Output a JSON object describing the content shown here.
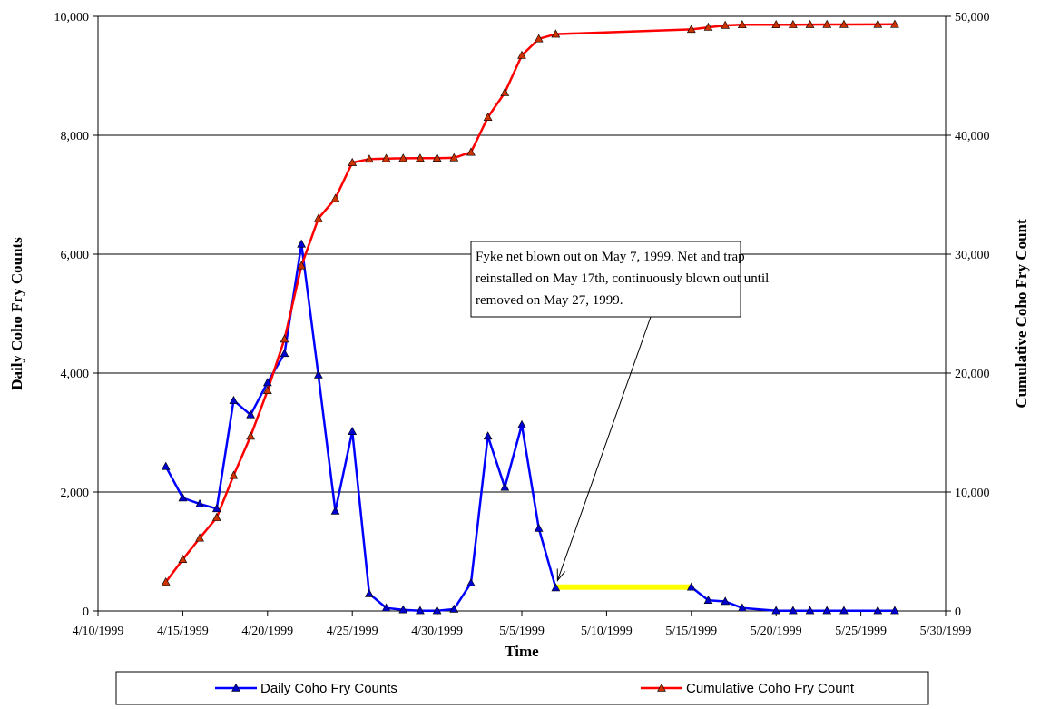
{
  "chart_data": {
    "type": "line",
    "xlabel": "Time",
    "ylabel_left": "Daily Coho Fry Counts",
    "ylabel_right": "Cumulative Coho Fry Count",
    "xlim": [
      "1999-04-10",
      "1999-05-30"
    ],
    "x_ticks": [
      "4/10/1999",
      "4/15/1999",
      "4/20/1999",
      "4/25/1999",
      "4/30/1999",
      "5/5/1999",
      "5/10/1999",
      "5/15/1999",
      "5/20/1999",
      "5/25/1999",
      "5/30/1999"
    ],
    "ylim_left": [
      0,
      10000
    ],
    "ylim_right": [
      0,
      50000
    ],
    "y_ticks_left": [
      "0",
      "2,000",
      "4,000",
      "6,000",
      "8,000",
      "10,000"
    ],
    "y_ticks_right": [
      "0",
      "10,000",
      "20,000",
      "30,000",
      "40,000",
      "50,000"
    ],
    "grid": "horizontal",
    "legend_position": "bottom",
    "series": [
      {
        "name": "Daily Coho Fry Counts",
        "axis": "left",
        "color": "#0000ff",
        "marker": "triangle",
        "segments": [
          [
            {
              "x": "1999-04-14",
              "y": 2430
            },
            {
              "x": "1999-04-15",
              "y": 1900
            },
            {
              "x": "1999-04-16",
              "y": 1800
            },
            {
              "x": "1999-04-17",
              "y": 1720
            },
            {
              "x": "1999-04-18",
              "y": 3540
            },
            {
              "x": "1999-04-19",
              "y": 3300
            },
            {
              "x": "1999-04-20",
              "y": 3840
            },
            {
              "x": "1999-04-21",
              "y": 4330
            },
            {
              "x": "1999-04-22",
              "y": 6170
            },
            {
              "x": "1999-04-23",
              "y": 3970
            },
            {
              "x": "1999-04-24",
              "y": 1680
            },
            {
              "x": "1999-04-25",
              "y": 3020
            },
            {
              "x": "1999-04-26",
              "y": 290
            },
            {
              "x": "1999-04-27",
              "y": 50
            },
            {
              "x": "1999-04-28",
              "y": 20
            },
            {
              "x": "1999-04-29",
              "y": 5
            },
            {
              "x": "1999-04-30",
              "y": 5
            },
            {
              "x": "1999-05-01",
              "y": 30
            },
            {
              "x": "1999-05-02",
              "y": 470
            },
            {
              "x": "1999-05-03",
              "y": 2940
            },
            {
              "x": "1999-05-04",
              "y": 2080
            },
            {
              "x": "1999-05-05",
              "y": 3130
            },
            {
              "x": "1999-05-06",
              "y": 1390
            },
            {
              "x": "1999-05-07",
              "y": 390
            }
          ],
          [
            {
              "x": "1999-05-15",
              "y": 400
            },
            {
              "x": "1999-05-16",
              "y": 180
            },
            {
              "x": "1999-05-17",
              "y": 160
            },
            {
              "x": "1999-05-18",
              "y": 50
            },
            {
              "x": "1999-05-20",
              "y": 5
            },
            {
              "x": "1999-05-21",
              "y": 5
            },
            {
              "x": "1999-05-22",
              "y": 5
            },
            {
              "x": "1999-05-23",
              "y": 5
            },
            {
              "x": "1999-05-24",
              "y": 5
            },
            {
              "x": "1999-05-26",
              "y": 5
            },
            {
              "x": "1999-05-27",
              "y": 5
            }
          ]
        ]
      },
      {
        "name": "Cumulative Coho Fry Count",
        "axis": "right",
        "color": "#ff0000",
        "marker": "triangle",
        "marker_fill": "#cc3300",
        "segments": [
          [
            {
              "x": "1999-04-14",
              "y": 2430
            },
            {
              "x": "1999-04-15",
              "y": 4330
            },
            {
              "x": "1999-04-16",
              "y": 6130
            },
            {
              "x": "1999-04-17",
              "y": 7850
            },
            {
              "x": "1999-04-18",
              "y": 11390
            },
            {
              "x": "1999-04-19",
              "y": 14690
            },
            {
              "x": "1999-04-20",
              "y": 18530
            },
            {
              "x": "1999-04-21",
              "y": 22860
            },
            {
              "x": "1999-04-22",
              "y": 29030
            },
            {
              "x": "1999-04-23",
              "y": 33000
            },
            {
              "x": "1999-04-24",
              "y": 34680
            },
            {
              "x": "1999-04-25",
              "y": 37700
            },
            {
              "x": "1999-04-26",
              "y": 37990
            },
            {
              "x": "1999-04-27",
              "y": 38040
            },
            {
              "x": "1999-04-28",
              "y": 38060
            },
            {
              "x": "1999-04-29",
              "y": 38065
            },
            {
              "x": "1999-04-30",
              "y": 38070
            },
            {
              "x": "1999-05-01",
              "y": 38100
            },
            {
              "x": "1999-05-02",
              "y": 38570
            },
            {
              "x": "1999-05-03",
              "y": 41510
            },
            {
              "x": "1999-05-04",
              "y": 43590
            },
            {
              "x": "1999-05-05",
              "y": 46720
            },
            {
              "x": "1999-05-06",
              "y": 48110
            },
            {
              "x": "1999-05-07",
              "y": 48500
            },
            {
              "x": "1999-05-15",
              "y": 48900
            },
            {
              "x": "1999-05-16",
              "y": 49080
            },
            {
              "x": "1999-05-17",
              "y": 49240
            },
            {
              "x": "1999-05-18",
              "y": 49290
            },
            {
              "x": "1999-05-20",
              "y": 49295
            },
            {
              "x": "1999-05-21",
              "y": 49300
            },
            {
              "x": "1999-05-22",
              "y": 49305
            },
            {
              "x": "1999-05-23",
              "y": 49310
            },
            {
              "x": "1999-05-24",
              "y": 49315
            },
            {
              "x": "1999-05-26",
              "y": 49320
            },
            {
              "x": "1999-05-27",
              "y": 49325
            }
          ]
        ]
      }
    ],
    "highlight": {
      "x_start": "1999-05-07",
      "x_end": "1999-05-15",
      "y": 400,
      "color": "#ffff00"
    },
    "annotation": {
      "lines": [
        "Fyke net blown out on May 7, 1999.  Net and trap",
        "reinstalled on May 17th,  continuously blown out until",
        "removed on May 27, 1999."
      ],
      "points_to": {
        "x": "1999-05-07",
        "y": 390
      }
    }
  }
}
